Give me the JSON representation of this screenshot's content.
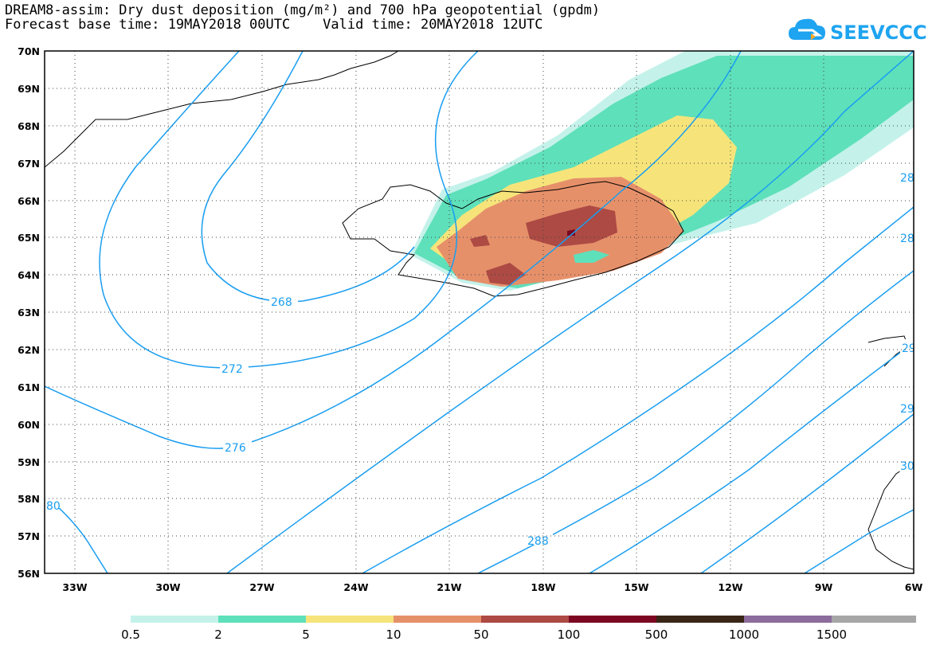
{
  "title": {
    "line1": "DREAM8-assim: Dry dust deposition (mg/m²) and 700 hPa geopotential (gpdm)",
    "line2": "Forecast base time: 19MAY2018 00UTC    Valid time: 20MAY2018 12UTC"
  },
  "logo": {
    "text": "SEEVCCC",
    "icon": "cloud-icon",
    "color": "#1ea4f0"
  },
  "axes": {
    "lat_labels": [
      "70N",
      "69N",
      "68N",
      "67N",
      "66N",
      "65N",
      "64N",
      "63N",
      "62N",
      "61N",
      "60N",
      "59N",
      "58N",
      "57N",
      "56N"
    ],
    "lon_labels": [
      "33W",
      "30W",
      "27W",
      "24W",
      "21W",
      "18W",
      "15W",
      "12W",
      "9W",
      "6W"
    ]
  },
  "contours": {
    "color": "#1a9ef0",
    "labels": [
      "268",
      "272",
      "276",
      "80",
      "288",
      "28",
      "28",
      "29",
      "29",
      "30"
    ]
  },
  "colorbar": {
    "colors": [
      "#c4f2ea",
      "#5ee0ba",
      "#f6e47a",
      "#e6906a",
      "#ad4a44",
      "#7c0722",
      "#3a2616",
      "#8c6c9c",
      "#a6a6a6"
    ],
    "labels": [
      "0.5",
      "2",
      "5",
      "10",
      "50",
      "100",
      "500",
      "1000",
      "1500"
    ]
  }
}
